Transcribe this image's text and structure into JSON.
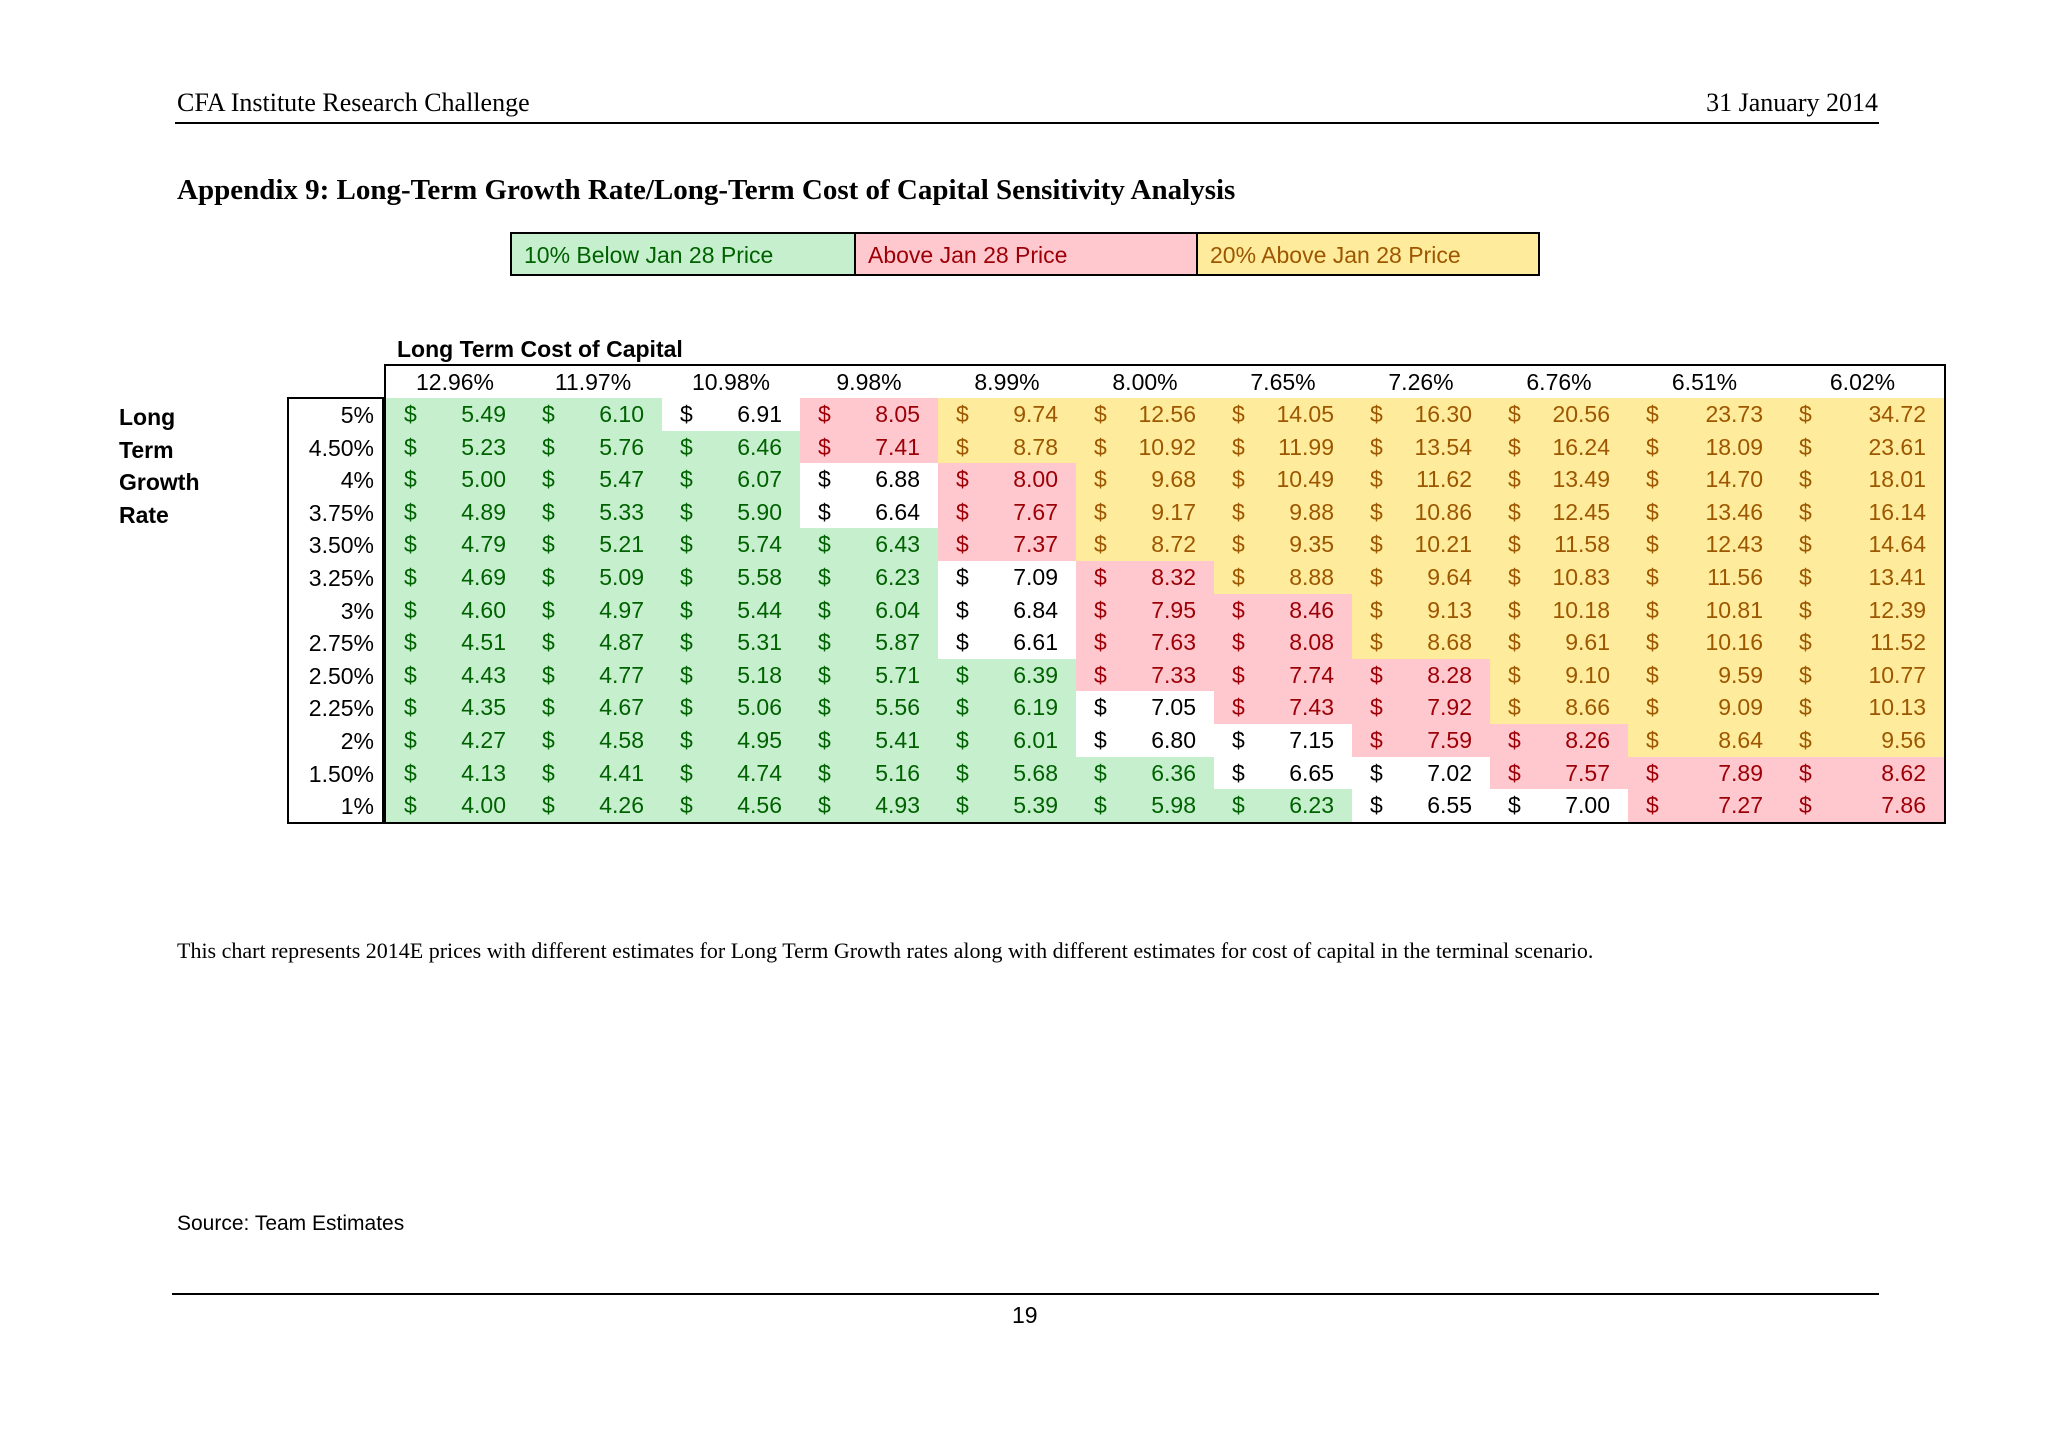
{
  "header": {
    "left": "CFA Institute Research Challenge",
    "right": "31 January 2014"
  },
  "title": "Appendix 9: Long-Term Growth Rate/Long-Term Cost of Capital Sensitivity Analysis",
  "legend": [
    {
      "label": "10% Below Jan 28 Price",
      "color": "green"
    },
    {
      "label": "Above Jan 28 Price",
      "color": "red"
    },
    {
      "label": "20% Above Jan 28 Price",
      "color": "yellow"
    }
  ],
  "colors": {
    "green_bg": "#c6efce",
    "green_text": "#006100",
    "red_bg": "#ffc7ce",
    "red_text": "#9c0006",
    "yellow_bg": "#ffeb9c",
    "yellow_text": "#9c5700"
  },
  "table": {
    "col_axis_label": "Long Term Cost of Capital",
    "row_axis_label": [
      "Long",
      "Term",
      "Growth",
      "Rate"
    ],
    "currency_symbol": "$",
    "columns": [
      "12.96%",
      "11.97%",
      "10.98%",
      "9.98%",
      "8.99%",
      "8.00%",
      "7.65%",
      "7.26%",
      "6.76%",
      "6.51%",
      "6.02%"
    ],
    "rows": [
      {
        "label": "5%",
        "values": [
          "5.49",
          "6.10",
          "6.91",
          "8.05",
          "9.74",
          "12.56",
          "14.05",
          "16.30",
          "20.56",
          "23.73",
          "34.72"
        ],
        "colors": [
          "g",
          "g",
          "n",
          "r",
          "y",
          "y",
          "y",
          "y",
          "y",
          "y",
          "y"
        ]
      },
      {
        "label": "4.50%",
        "values": [
          "5.23",
          "5.76",
          "6.46",
          "7.41",
          "8.78",
          "10.92",
          "11.99",
          "13.54",
          "16.24",
          "18.09",
          "23.61"
        ],
        "colors": [
          "g",
          "g",
          "g",
          "r",
          "y",
          "y",
          "y",
          "y",
          "y",
          "y",
          "y"
        ]
      },
      {
        "label": "4%",
        "values": [
          "5.00",
          "5.47",
          "6.07",
          "6.88",
          "8.00",
          "9.68",
          "10.49",
          "11.62",
          "13.49",
          "14.70",
          "18.01"
        ],
        "colors": [
          "g",
          "g",
          "g",
          "n",
          "r",
          "y",
          "y",
          "y",
          "y",
          "y",
          "y"
        ]
      },
      {
        "label": "3.75%",
        "values": [
          "4.89",
          "5.33",
          "5.90",
          "6.64",
          "7.67",
          "9.17",
          "9.88",
          "10.86",
          "12.45",
          "13.46",
          "16.14"
        ],
        "colors": [
          "g",
          "g",
          "g",
          "n",
          "r",
          "y",
          "y",
          "y",
          "y",
          "y",
          "y"
        ]
      },
      {
        "label": "3.50%",
        "values": [
          "4.79",
          "5.21",
          "5.74",
          "6.43",
          "7.37",
          "8.72",
          "9.35",
          "10.21",
          "11.58",
          "12.43",
          "14.64"
        ],
        "colors": [
          "g",
          "g",
          "g",
          "g",
          "r",
          "y",
          "y",
          "y",
          "y",
          "y",
          "y"
        ]
      },
      {
        "label": "3.25%",
        "values": [
          "4.69",
          "5.09",
          "5.58",
          "6.23",
          "7.09",
          "8.32",
          "8.88",
          "9.64",
          "10.83",
          "11.56",
          "13.41"
        ],
        "colors": [
          "g",
          "g",
          "g",
          "g",
          "n",
          "r",
          "y",
          "y",
          "y",
          "y",
          "y"
        ]
      },
      {
        "label": "3%",
        "values": [
          "4.60",
          "4.97",
          "5.44",
          "6.04",
          "6.84",
          "7.95",
          "8.46",
          "9.13",
          "10.18",
          "10.81",
          "12.39"
        ],
        "colors": [
          "g",
          "g",
          "g",
          "g",
          "n",
          "r",
          "r",
          "y",
          "y",
          "y",
          "y"
        ]
      },
      {
        "label": "2.75%",
        "values": [
          "4.51",
          "4.87",
          "5.31",
          "5.87",
          "6.61",
          "7.63",
          "8.08",
          "8.68",
          "9.61",
          "10.16",
          "11.52"
        ],
        "colors": [
          "g",
          "g",
          "g",
          "g",
          "n",
          "r",
          "r",
          "y",
          "y",
          "y",
          "y"
        ]
      },
      {
        "label": "2.50%",
        "values": [
          "4.43",
          "4.77",
          "5.18",
          "5.71",
          "6.39",
          "7.33",
          "7.74",
          "8.28",
          "9.10",
          "9.59",
          "10.77"
        ],
        "colors": [
          "g",
          "g",
          "g",
          "g",
          "g",
          "r",
          "r",
          "r",
          "y",
          "y",
          "y"
        ]
      },
      {
        "label": "2.25%",
        "values": [
          "4.35",
          "4.67",
          "5.06",
          "5.56",
          "6.19",
          "7.05",
          "7.43",
          "7.92",
          "8.66",
          "9.09",
          "10.13"
        ],
        "colors": [
          "g",
          "g",
          "g",
          "g",
          "g",
          "n",
          "r",
          "r",
          "y",
          "y",
          "y"
        ]
      },
      {
        "label": "2%",
        "values": [
          "4.27",
          "4.58",
          "4.95",
          "5.41",
          "6.01",
          "6.80",
          "7.15",
          "7.59",
          "8.26",
          "8.64",
          "9.56"
        ],
        "colors": [
          "g",
          "g",
          "g",
          "g",
          "g",
          "n",
          "n",
          "r",
          "r",
          "y",
          "y"
        ]
      },
      {
        "label": "1.50%",
        "values": [
          "4.13",
          "4.41",
          "4.74",
          "5.16",
          "5.68",
          "6.36",
          "6.65",
          "7.02",
          "7.57",
          "7.89",
          "8.62"
        ],
        "colors": [
          "g",
          "g",
          "g",
          "g",
          "g",
          "g",
          "n",
          "n",
          "r",
          "r",
          "r"
        ]
      },
      {
        "label": "1%",
        "values": [
          "4.00",
          "4.26",
          "4.56",
          "4.93",
          "5.39",
          "5.98",
          "6.23",
          "6.55",
          "7.00",
          "7.27",
          "7.86"
        ],
        "colors": [
          "g",
          "g",
          "g",
          "g",
          "g",
          "g",
          "g",
          "n",
          "n",
          "r",
          "r"
        ]
      }
    ]
  },
  "caption": "This chart represents 2014E prices with different estimates for Long Term Growth rates along with different estimates for cost of capital in the terminal scenario.",
  "source": "Source: Team Estimates",
  "page_number": "19"
}
